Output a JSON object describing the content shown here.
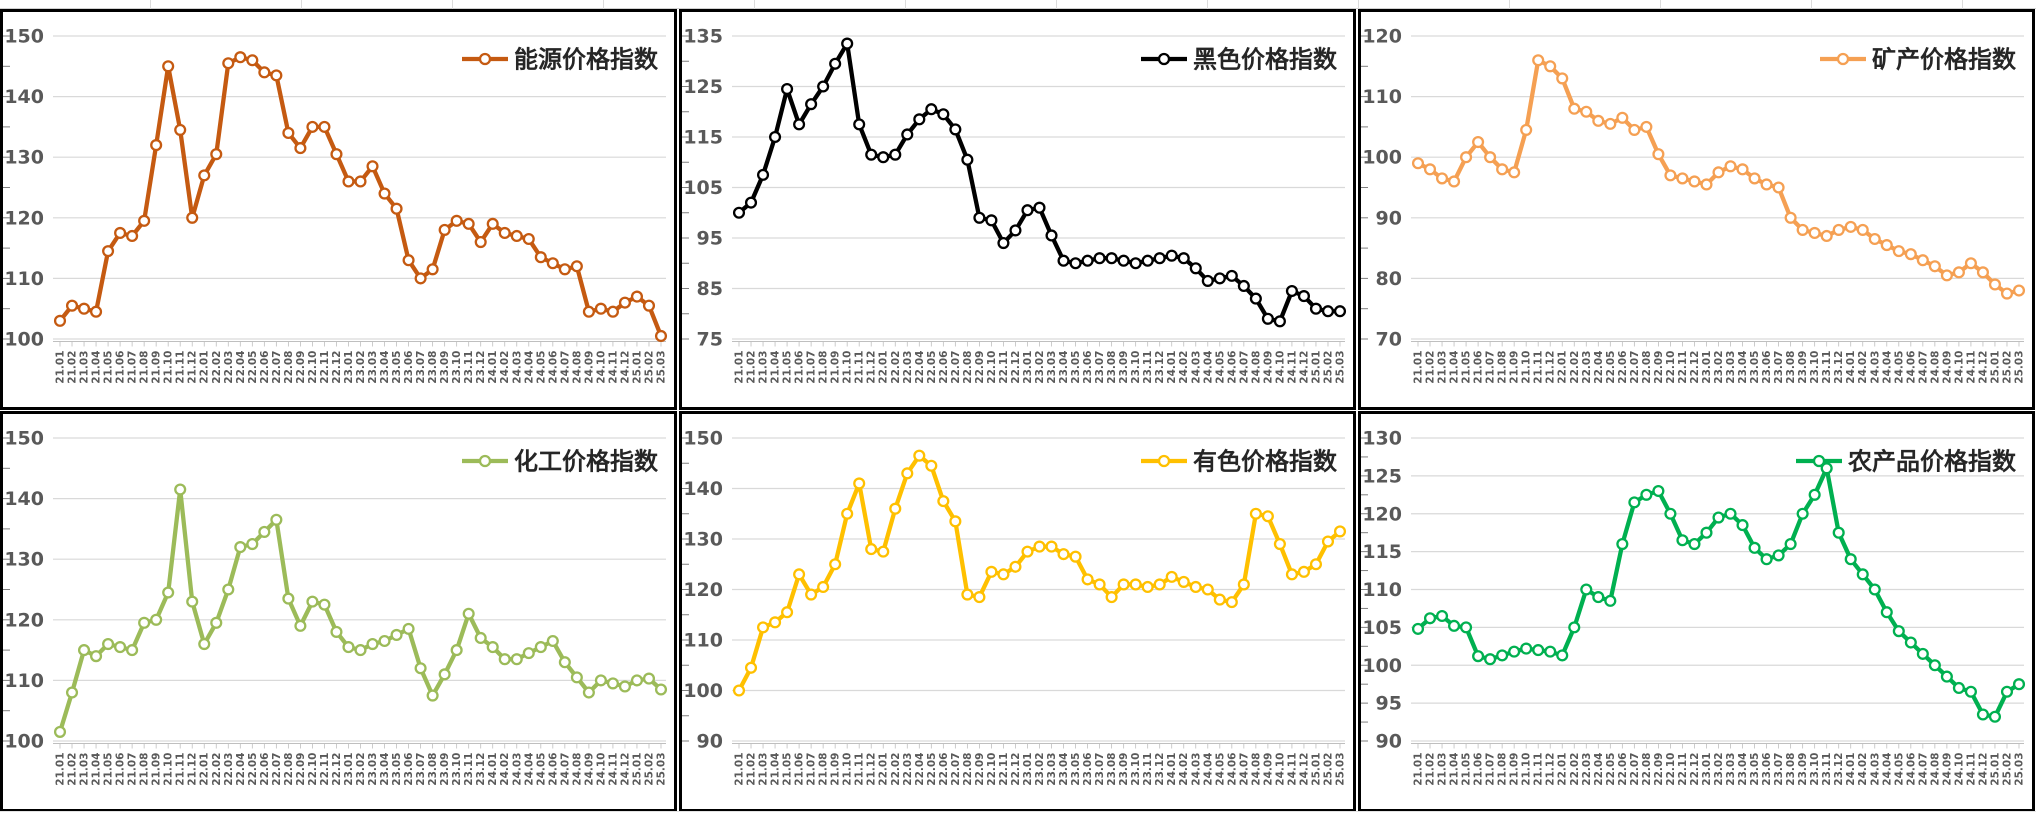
{
  "style": {
    "grid_color": "#D9D9D9",
    "axis_line_color": "#BFBFBF",
    "minor_tick_color": "#7F7F7F",
    "tick_label_color": "#595959",
    "legend_text_color": "#262626",
    "chart_border_color": "#000000",
    "marker_fill": "#FFFFFF",
    "background": "#FFFFFF"
  },
  "categories": [
    "21.01",
    "21.02",
    "21.03",
    "21.04",
    "21.05",
    "21.06",
    "21.07",
    "21.08",
    "21.09",
    "21.10",
    "21.11",
    "21.12",
    "22.01",
    "22.02",
    "22.03",
    "22.04",
    "22.05",
    "22.06",
    "22.07",
    "22.08",
    "22.09",
    "22.10",
    "22.11",
    "22.12",
    "23.01",
    "23.02",
    "23.03",
    "23.04",
    "23.05",
    "23.06",
    "23.07",
    "23.08",
    "23.09",
    "23.10",
    "23.11",
    "23.12",
    "24.01",
    "24.02",
    "24.03",
    "24.04",
    "24.05",
    "24.06",
    "24.07",
    "24.08",
    "24.09",
    "24.10",
    "24.11",
    "24.12",
    "25.01",
    "25.02",
    "25.03"
  ],
  "chart_data": [
    {
      "id": "energy",
      "type": "line",
      "title": "能源价格指数",
      "color": "#C55A11",
      "ymin": 100,
      "ymax": 150,
      "ystep": 10,
      "grid": true,
      "legend_position": "top-right",
      "values": [
        103,
        105.5,
        105,
        104.5,
        114.5,
        117.5,
        117,
        119.5,
        132,
        145,
        134.5,
        120,
        127,
        130.5,
        145.5,
        146.5,
        146,
        144,
        143.5,
        134,
        131.5,
        135,
        135,
        130.5,
        126,
        126,
        128.5,
        124,
        121.5,
        113,
        110,
        111.5,
        118,
        119.5,
        119,
        116,
        119,
        117.5,
        117,
        116.5,
        113.5,
        112.5,
        111.5,
        112,
        104.5,
        105,
        104.5,
        106,
        107,
        105.5,
        100.5
      ]
    },
    {
      "id": "ferrous",
      "type": "line",
      "title": "黑色价格指数",
      "color": "#000000",
      "ymin": 75,
      "ymax": 135,
      "ystep": 10,
      "grid": true,
      "legend_position": "top-right",
      "values": [
        100,
        102,
        107.5,
        115,
        124.5,
        117.5,
        121.5,
        125,
        129.5,
        133.5,
        117.5,
        111.5,
        111,
        111.5,
        115.5,
        118.5,
        120.5,
        119.5,
        116.5,
        110.5,
        99,
        98.5,
        94,
        96.5,
        100.5,
        101,
        95.5,
        90.5,
        90,
        90.5,
        91,
        91,
        90.5,
        90,
        90.5,
        91,
        91.5,
        91,
        89,
        86.5,
        87,
        87.5,
        85.5,
        83,
        79,
        78.5,
        84.5,
        83.5,
        81,
        80.5,
        80.5
      ]
    },
    {
      "id": "mineral",
      "type": "line",
      "title": "矿产价格指数",
      "color": "#F5A053",
      "ymin": 70,
      "ymax": 120,
      "ystep": 10,
      "grid": true,
      "legend_position": "top-right",
      "values": [
        99,
        98,
        96.5,
        96,
        100,
        102.5,
        100,
        98,
        97.5,
        104.5,
        116,
        115,
        113,
        108,
        107.5,
        106,
        105.5,
        106.5,
        104.5,
        105,
        100.5,
        97,
        96.5,
        96,
        95.5,
        97.5,
        98.5,
        98,
        96.5,
        95.5,
        95,
        90,
        88,
        87.5,
        87,
        88,
        88.5,
        88,
        86.5,
        85.5,
        84.5,
        84,
        83,
        82,
        80.5,
        81,
        82.5,
        81,
        79,
        77.5,
        78
      ]
    },
    {
      "id": "chemical",
      "type": "line",
      "title": "化工价格指数",
      "color": "#9CBB59",
      "ymin": 100,
      "ymax": 150,
      "ystep": 10,
      "grid": true,
      "legend_position": "top-right",
      "values": [
        101.5,
        108,
        115,
        114,
        116,
        115.5,
        115,
        119.5,
        120,
        124.5,
        141.5,
        123,
        116,
        119.5,
        125,
        132,
        132.5,
        134.5,
        136.5,
        123.5,
        119,
        123,
        122.5,
        118,
        115.5,
        115,
        116,
        116.5,
        117.5,
        118.5,
        112,
        107.5,
        111,
        115,
        121,
        117,
        115.5,
        113.5,
        113.5,
        114.5,
        115.5,
        116.5,
        113,
        110.5,
        108,
        110,
        109.5,
        109,
        110,
        110.3,
        108.5
      ]
    },
    {
      "id": "nonferrous",
      "type": "line",
      "title": "有色价格指数",
      "color": "#FFC000",
      "ymin": 90,
      "ymax": 150,
      "ystep": 10,
      "grid": true,
      "legend_position": "top-right",
      "values": [
        100,
        104.5,
        112.5,
        113.5,
        115.5,
        123,
        119,
        120.5,
        125,
        135,
        141,
        128,
        127.5,
        136,
        143,
        146.5,
        144.5,
        137.5,
        133.5,
        119,
        118.5,
        123.5,
        123,
        124.5,
        127.5,
        128.5,
        128.5,
        127,
        126.5,
        122,
        121,
        118.5,
        121,
        121,
        120.5,
        121,
        122.5,
        121.5,
        120.5,
        120,
        118,
        117.5,
        121,
        135,
        134.5,
        129,
        123,
        123.5,
        125,
        129.5,
        131.5
      ]
    },
    {
      "id": "agricultural",
      "type": "line",
      "title": "农产品价格指数",
      "color": "#00B050",
      "ymin": 90,
      "ymax": 130,
      "ystep": 5,
      "grid": true,
      "legend_position": "top-right",
      "values": [
        104.8,
        106.2,
        106.5,
        105.2,
        105,
        101.2,
        100.8,
        101.3,
        101.8,
        102.2,
        102,
        101.8,
        101.3,
        105,
        110,
        109,
        108.5,
        116,
        121.5,
        122.5,
        123,
        120,
        116.5,
        116,
        117.5,
        119.5,
        120,
        118.5,
        115.5,
        114,
        114.5,
        116,
        120,
        122.5,
        126,
        117.5,
        114,
        112,
        110,
        107,
        104.5,
        103,
        101.5,
        100,
        98.5,
        97,
        96.5,
        93.5,
        93.2,
        96.5,
        97.5
      ]
    }
  ]
}
